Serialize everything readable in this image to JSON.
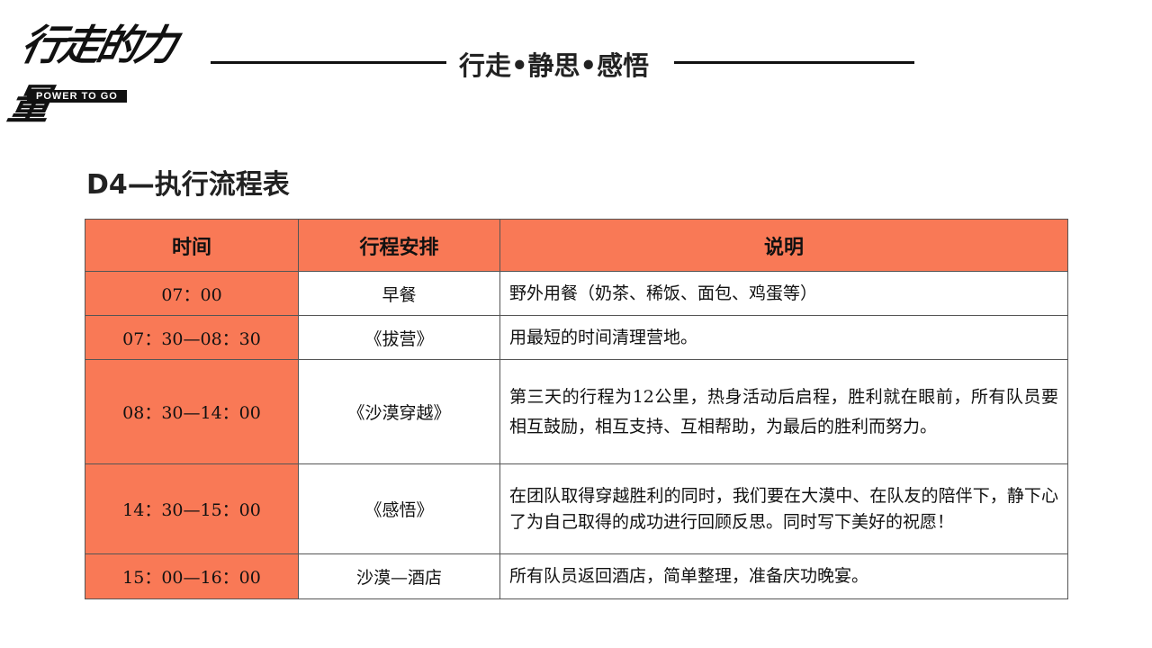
{
  "logo": {
    "script": "行走的力量",
    "tagline": "POWER TO GO"
  },
  "header": {
    "title": "行走•静思•感悟"
  },
  "page_title": "D4—执行流程表",
  "colors": {
    "accent": "#F97956"
  },
  "table": {
    "headers": [
      "时间",
      "行程安排",
      "说明"
    ],
    "rows": [
      {
        "time": "07：00",
        "activity": "早餐",
        "description": "野外用餐（奶茶、稀饭、面包、鸡蛋等）"
      },
      {
        "time": "07：30—08：30",
        "activity": "《拔营》",
        "description": "用最短的时间清理营地。"
      },
      {
        "time": "08：30—14：00",
        "activity": "《沙漠穿越》",
        "description": "第三天的行程为12公里，热身活动后启程，胜利就在眼前，所有队员要相互鼓励，相互支持、互相帮助，为最后的胜利而努力。"
      },
      {
        "time": "14：30—15：00",
        "activity": "《感悟》",
        "description": "在团队取得穿越胜利的同时，我们要在大漠中、在队友的陪伴下，静下心了为自己取得的成功进行回顾反思。同时写下美好的祝愿！"
      },
      {
        "time": "15：00—16：00",
        "activity": "沙漠—酒店",
        "description": "所有队员返回酒店，简单整理，准备庆功晚宴。"
      }
    ]
  }
}
